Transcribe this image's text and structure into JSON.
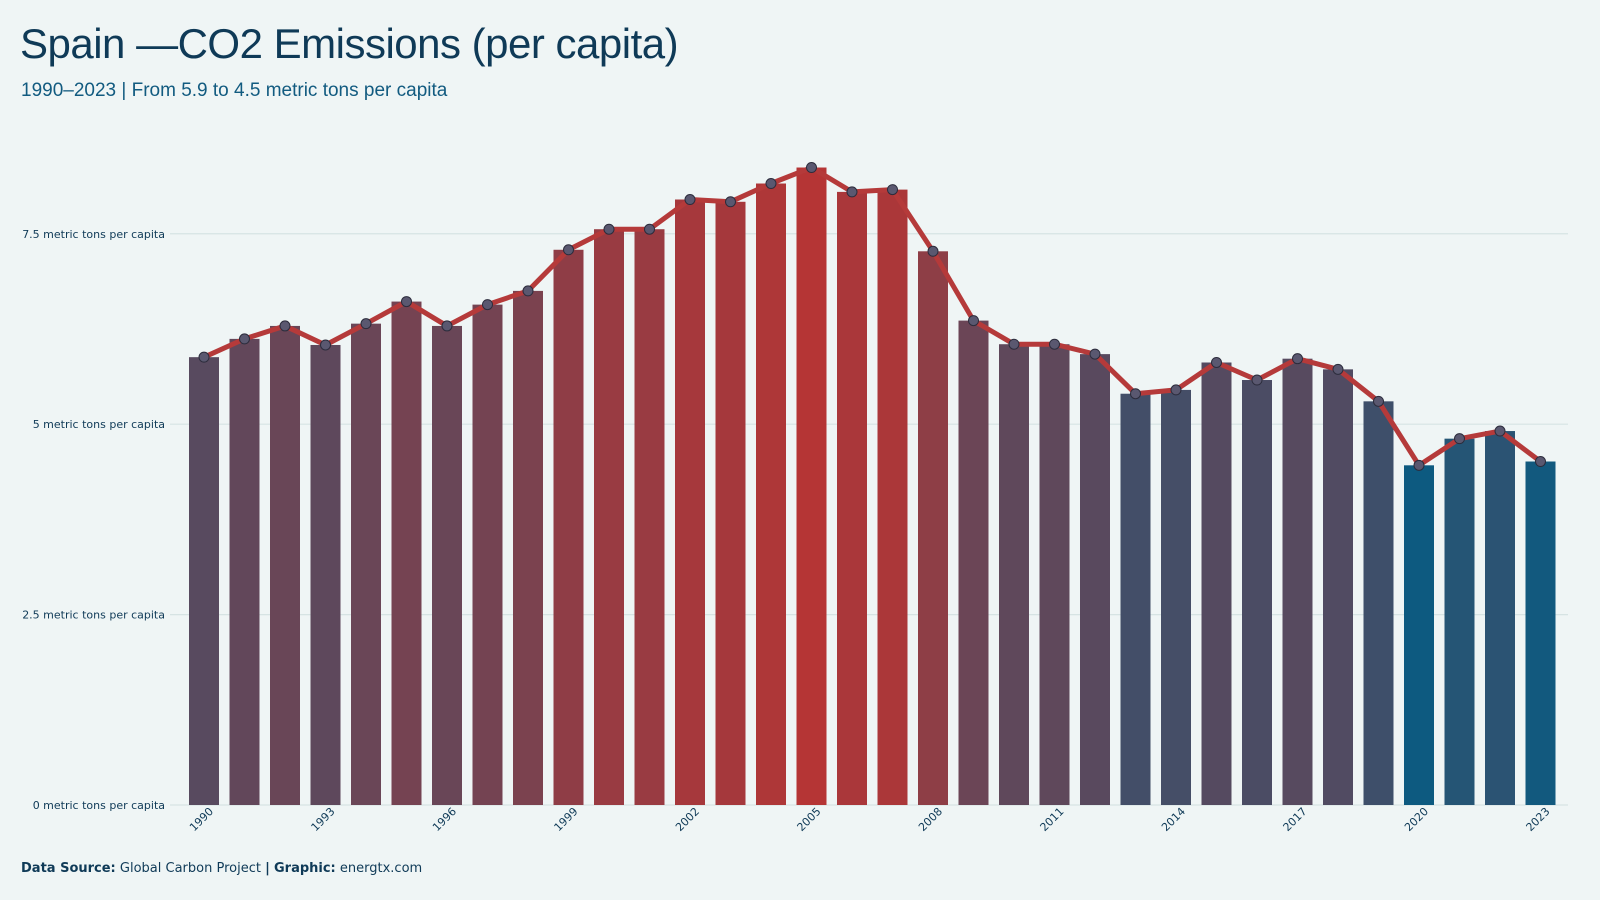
{
  "title": "Spain —CO2 Emissions (per capita)",
  "subtitle": "1990–2023 | From 5.9 to 4.5 metric tons per capita",
  "caption": {
    "source_label": "Data Source:",
    "source_value": "Global Carbon Project",
    "separator": "|",
    "graphic_label": "Graphic:",
    "graphic_value": "energtx.com"
  },
  "colors": {
    "background": "#eff5f5",
    "gridline": "#d6e3e3",
    "line": "#b53a3a",
    "marker_fill": "#5a5870",
    "high": "#b53535",
    "low": "#0d5a80"
  },
  "chart_data": {
    "type": "bar",
    "categories": [
      "1990",
      "1991",
      "1992",
      "1993",
      "1994",
      "1995",
      "1996",
      "1997",
      "1998",
      "1999",
      "2000",
      "2001",
      "2002",
      "2003",
      "2004",
      "2005",
      "2006",
      "2007",
      "2008",
      "2009",
      "2010",
      "2011",
      "2012",
      "2013",
      "2014",
      "2015",
      "2016",
      "2017",
      "2018",
      "2019",
      "2020",
      "2021",
      "2022",
      "2023"
    ],
    "tick_labels": [
      "1990",
      "1993",
      "1996",
      "1999",
      "2002",
      "2005",
      "2008",
      "2011",
      "2014",
      "2017",
      "2020",
      "2023"
    ],
    "values": [
      5.88,
      6.12,
      6.29,
      6.04,
      6.32,
      6.61,
      6.29,
      6.57,
      6.75,
      7.29,
      7.56,
      7.56,
      7.95,
      7.92,
      8.16,
      8.37,
      8.05,
      8.08,
      7.27,
      6.36,
      6.05,
      6.05,
      5.92,
      5.4,
      5.45,
      5.81,
      5.58,
      5.86,
      5.72,
      5.3,
      4.46,
      4.81,
      4.91,
      4.51
    ],
    "yticks": [
      {
        "value": 0,
        "label": "0 metric tons per capita"
      },
      {
        "value": 2.5,
        "label": "2.5 metric tons per capita"
      },
      {
        "value": 5,
        "label": "5 metric tons per capita"
      },
      {
        "value": 7.5,
        "label": "7.5 metric tons per capita"
      }
    ],
    "ylim": [
      0,
      8.6
    ],
    "overlay": "line-with-markers",
    "grid": true,
    "legend": "none"
  }
}
